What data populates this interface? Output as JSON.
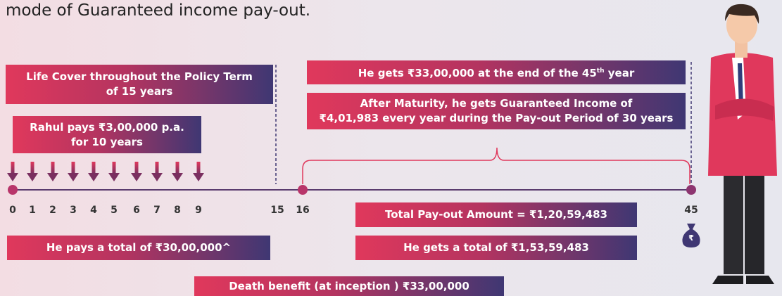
{
  "header": {
    "title": "mode of Guaranteed income pay-out."
  },
  "life_cover": {
    "lines": [
      "Life Cover throughout the Policy Term",
      "of 15 years"
    ]
  },
  "premium": {
    "lines": [
      "Rahul pays ₹3,00,000 p.a.",
      "for 10 years"
    ]
  },
  "maturity": {
    "text": "He gets ₹33,00,000 at the end of the 45",
    "sup": "th",
    "tail": "year"
  },
  "income": {
    "lines": [
      "After Maturity, he gets Guaranteed Income of",
      "₹4,01,983 every year during the Pay-out Period of 30 years"
    ]
  },
  "timeline": {
    "labels": [
      "0",
      "1",
      "2",
      "3",
      "4",
      "5",
      "6",
      "7",
      "8",
      "9",
      "15",
      "16",
      "45"
    ]
  },
  "payout_total": {
    "text": "Total Pay-out Amount = ₹1,20,59,483"
  },
  "pays_total": {
    "text": "He pays a total of ₹30,00,000^"
  },
  "gets_total": {
    "text": "He gets a total of ₹1,53,59,483"
  },
  "death_benefit": {
    "text": "Death benefit (at inception ) ₹33,00,000"
  },
  "bag_symbol": "₹"
}
